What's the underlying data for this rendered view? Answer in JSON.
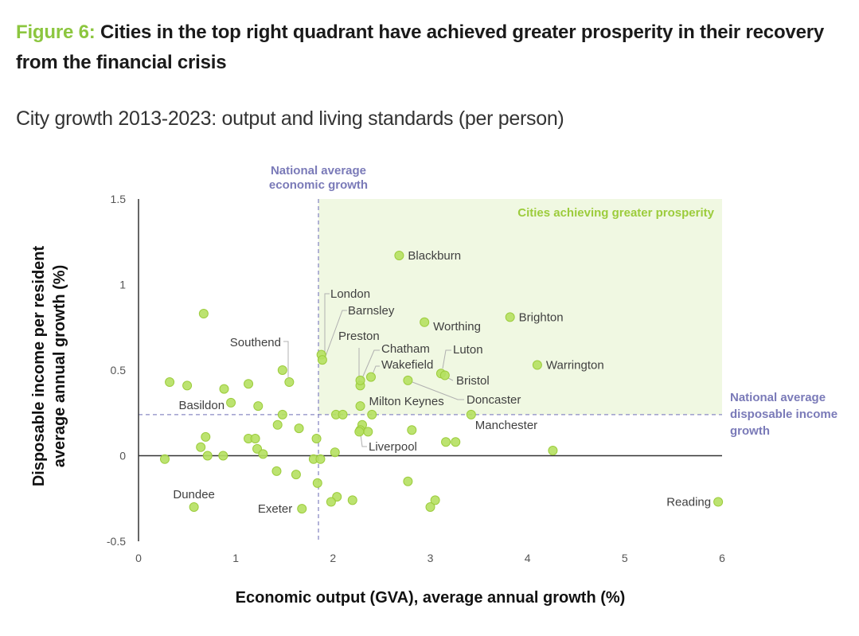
{
  "figure": {
    "number_label": "Figure 6:",
    "title": "Cities in the top right quadrant have achieved greater prosperity in their recovery from the financial crisis",
    "subtitle": "City growth 2013-2023: output and living standards (per person)"
  },
  "colors": {
    "accent": "#8cc63f",
    "dot_fill": "#b5e061",
    "dot_stroke": "#9ccc3c",
    "quadrant_fill": "#f0f8e2",
    "reference_line": "#8a8ac4",
    "reference_text": "#7a7ab8"
  },
  "chart_data": {
    "type": "scatter",
    "title": "City growth 2013-2023: output and living standards (per person)",
    "xlabel": "Economic output (GVA), average annual growth (%)",
    "ylabel": "Disposable income per resident average annual growth (%)",
    "ylabel_lines": [
      "Disposable income per resident",
      "average annual growth (%)"
    ],
    "xlim": [
      0,
      6
    ],
    "ylim": [
      -0.5,
      1.5
    ],
    "xticks": [
      0,
      1,
      2,
      3,
      4,
      5,
      6
    ],
    "yticks": [
      -0.5,
      0,
      0.5,
      1,
      1.5
    ],
    "xtick_labels": [
      "0",
      "1",
      "2",
      "3",
      "4",
      "5",
      "6"
    ],
    "ytick_labels": [
      "-0.5",
      "0",
      "0.5",
      "1",
      "1.5"
    ],
    "grid": false,
    "reference_lines": {
      "x": {
        "value": 1.85,
        "label_lines": [
          "National average",
          "economic growth"
        ]
      },
      "y": {
        "value": 0.24,
        "label_lines": [
          "National average",
          "disposable income",
          "growth"
        ]
      }
    },
    "quadrant_label": "Cities achieving greater prosperity",
    "labeled_points": [
      {
        "name": "Blackburn",
        "x": 2.68,
        "y": 1.17
      },
      {
        "name": "Worthing",
        "x": 2.94,
        "y": 0.78
      },
      {
        "name": "Brighton",
        "x": 3.82,
        "y": 0.81
      },
      {
        "name": "Warrington",
        "x": 4.1,
        "y": 0.53
      },
      {
        "name": "London",
        "x": 1.88,
        "y": 0.59
      },
      {
        "name": "Barnsley",
        "x": 1.89,
        "y": 0.56
      },
      {
        "name": "Preston",
        "x": 2.28,
        "y": 0.41
      },
      {
        "name": "Chatham",
        "x": 2.28,
        "y": 0.44
      },
      {
        "name": "Wakefield",
        "x": 2.39,
        "y": 0.46
      },
      {
        "name": "Doncaster",
        "x": 2.77,
        "y": 0.44
      },
      {
        "name": "Luton",
        "x": 3.11,
        "y": 0.48
      },
      {
        "name": "Bristol",
        "x": 3.15,
        "y": 0.47
      },
      {
        "name": "Milton Keynes",
        "x": 2.28,
        "y": 0.29
      },
      {
        "name": "Manchester",
        "x": 3.42,
        "y": 0.24
      },
      {
        "name": "Liverpool",
        "x": 2.27,
        "y": 0.14
      },
      {
        "name": "Southend",
        "x": 1.55,
        "y": 0.43
      },
      {
        "name": "Basildon",
        "x": 0.95,
        "y": 0.31
      },
      {
        "name": "Dundee",
        "x": 0.57,
        "y": -0.3
      },
      {
        "name": "Exeter",
        "x": 1.68,
        "y": -0.31
      },
      {
        "name": "Reading",
        "x": 5.96,
        "y": -0.27
      }
    ],
    "unlabeled_points": [
      {
        "x": 0.67,
        "y": 0.83
      },
      {
        "x": 0.32,
        "y": 0.43
      },
      {
        "x": 0.5,
        "y": 0.41
      },
      {
        "x": 0.88,
        "y": 0.39
      },
      {
        "x": 1.13,
        "y": 0.42
      },
      {
        "x": 1.23,
        "y": 0.29
      },
      {
        "x": 1.48,
        "y": 0.5
      },
      {
        "x": 1.48,
        "y": 0.24
      },
      {
        "x": 1.43,
        "y": 0.18
      },
      {
        "x": 1.65,
        "y": 0.16
      },
      {
        "x": 1.83,
        "y": 0.1
      },
      {
        "x": 1.13,
        "y": 0.1
      },
      {
        "x": 1.2,
        "y": 0.1
      },
      {
        "x": 1.22,
        "y": 0.04
      },
      {
        "x": 1.28,
        "y": 0.01
      },
      {
        "x": 0.69,
        "y": 0.11
      },
      {
        "x": 0.64,
        "y": 0.05
      },
      {
        "x": 0.71,
        "y": 0.0
      },
      {
        "x": 0.87,
        "y": 0.0
      },
      {
        "x": 0.27,
        "y": -0.02
      },
      {
        "x": 1.8,
        "y": -0.02
      },
      {
        "x": 1.87,
        "y": -0.02
      },
      {
        "x": 2.02,
        "y": 0.02
      },
      {
        "x": 1.42,
        "y": -0.09
      },
      {
        "x": 1.62,
        "y": -0.11
      },
      {
        "x": 1.84,
        "y": -0.16
      },
      {
        "x": 2.04,
        "y": -0.24
      },
      {
        "x": 1.98,
        "y": -0.27
      },
      {
        "x": 2.2,
        "y": -0.26
      },
      {
        "x": 2.77,
        "y": -0.15
      },
      {
        "x": 3.05,
        "y": -0.26
      },
      {
        "x": 3.0,
        "y": -0.3
      },
      {
        "x": 2.03,
        "y": 0.24
      },
      {
        "x": 2.1,
        "y": 0.24
      },
      {
        "x": 2.4,
        "y": 0.24
      },
      {
        "x": 2.3,
        "y": 0.18
      },
      {
        "x": 2.28,
        "y": 0.15
      },
      {
        "x": 2.36,
        "y": 0.14
      },
      {
        "x": 2.81,
        "y": 0.15
      },
      {
        "x": 3.16,
        "y": 0.08
      },
      {
        "x": 3.26,
        "y": 0.08
      },
      {
        "x": 4.26,
        "y": 0.03
      }
    ]
  }
}
